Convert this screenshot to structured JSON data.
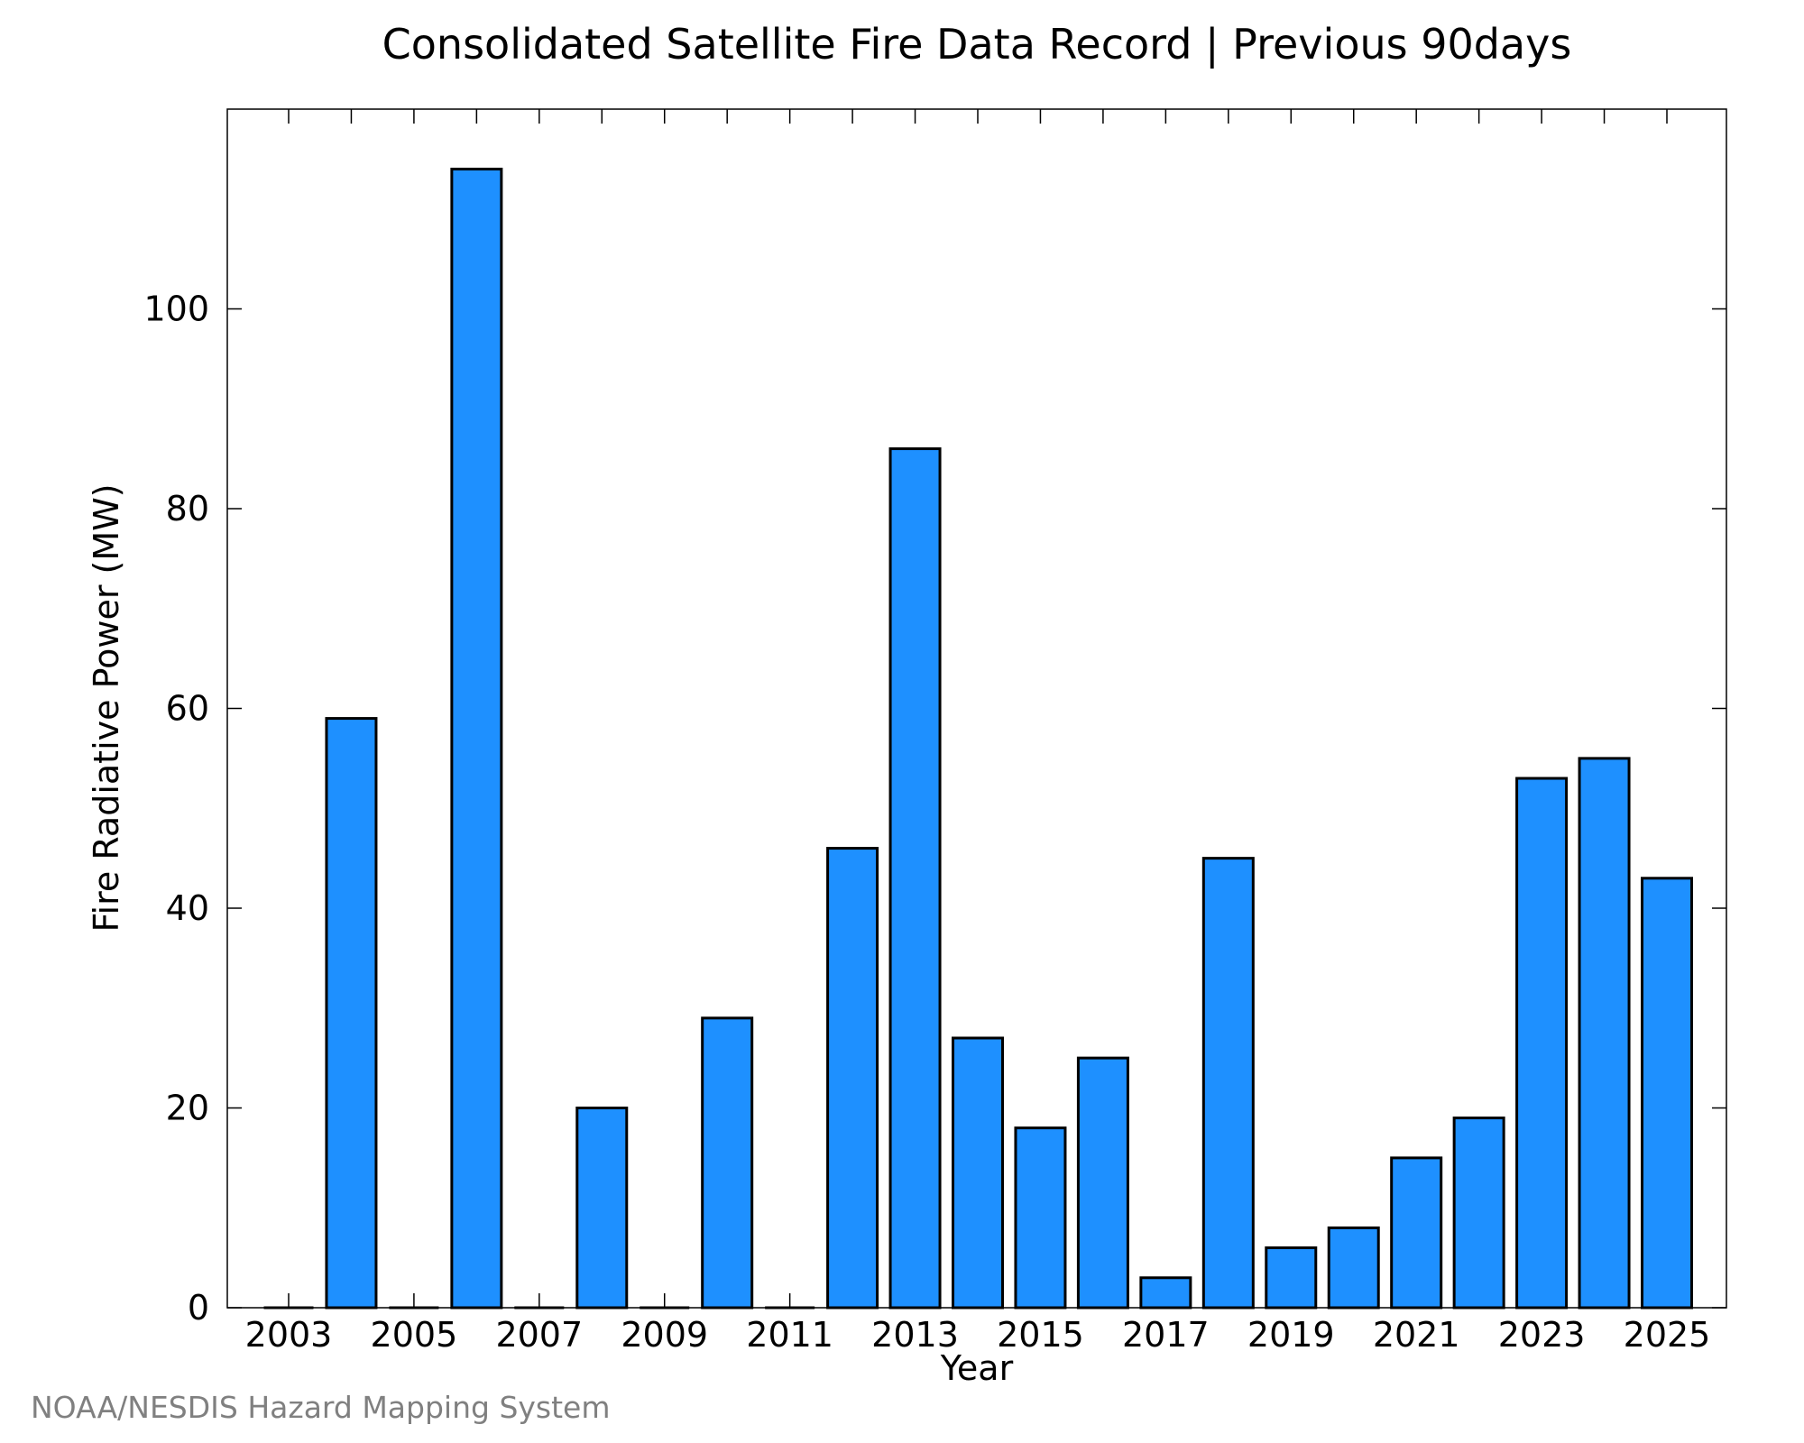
{
  "chart_data": {
    "type": "bar",
    "title": "Consolidated Satellite Fire Data Record | Previous 90days",
    "xlabel": "Year",
    "ylabel": "Fire Radiative Power (MW)",
    "categories": [
      "2003",
      "2004",
      "2005",
      "2006",
      "2007",
      "2008",
      "2009",
      "2010",
      "2011",
      "2012",
      "2013",
      "2014",
      "2015",
      "2016",
      "2017",
      "2018",
      "2019",
      "2020",
      "2021",
      "2022",
      "2023",
      "2024",
      "2025"
    ],
    "values": [
      0,
      59,
      0,
      114,
      0,
      20,
      0,
      29,
      0,
      46,
      86,
      27,
      18,
      25,
      3,
      45,
      6,
      8,
      15,
      19,
      53,
      55,
      43
    ],
    "x_tick_labels": [
      "2003",
      "2005",
      "2007",
      "2009",
      "2011",
      "2013",
      "2015",
      "2017",
      "2019",
      "2021",
      "2023",
      "2025"
    ],
    "y_ticks": [
      0,
      20,
      40,
      60,
      80,
      100
    ],
    "ylim": [
      0,
      120
    ],
    "grid": false,
    "bar_color": "#1e90ff"
  },
  "credit": "NOAA/NESDIS Hazard Mapping System"
}
